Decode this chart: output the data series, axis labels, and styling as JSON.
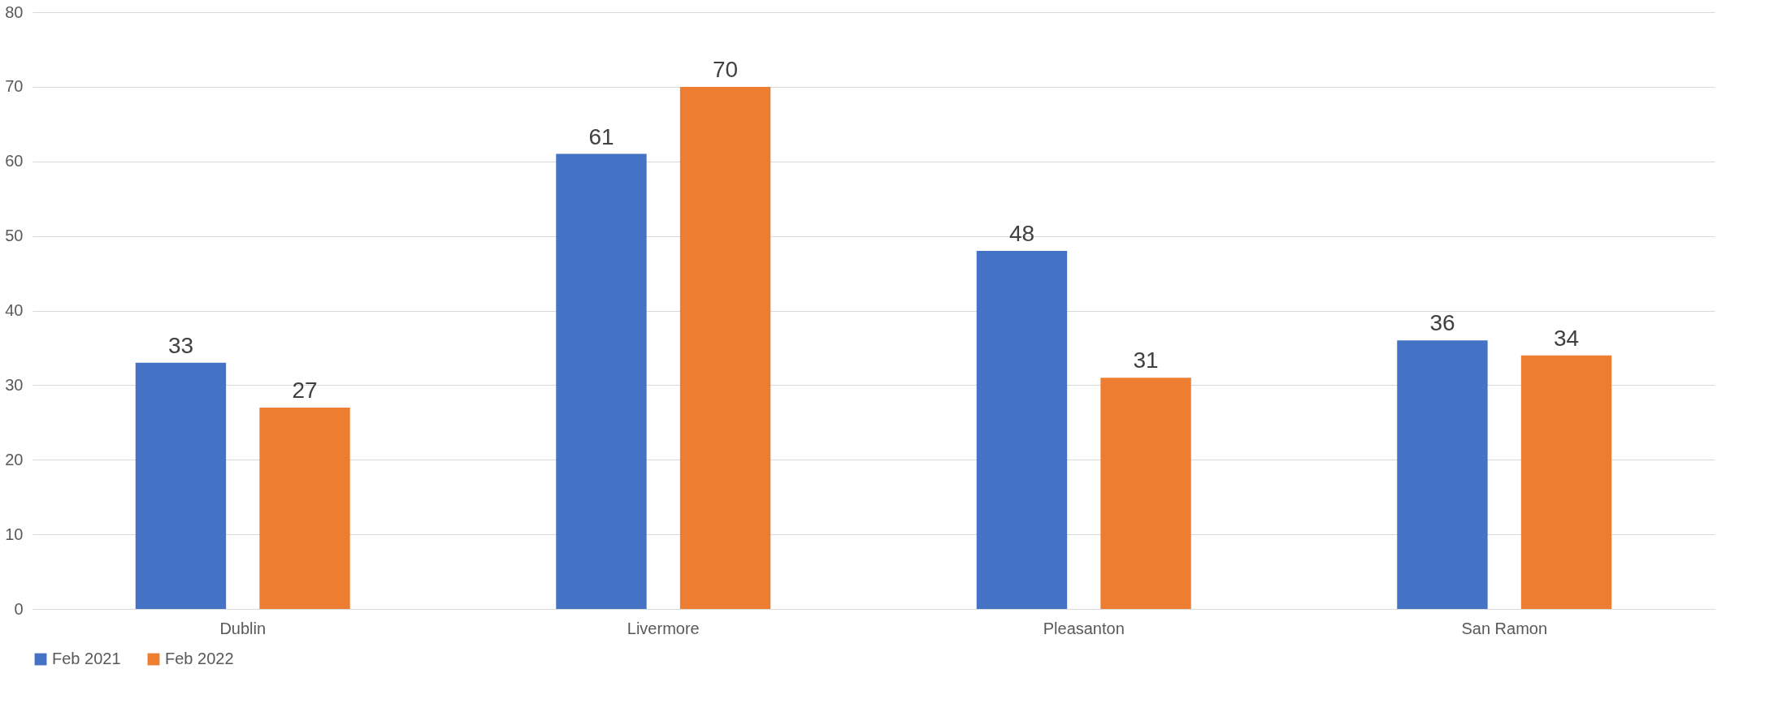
{
  "chart_data": {
    "type": "bar",
    "categories": [
      "Dublin",
      "Livermore",
      "Pleasanton",
      "San Ramon"
    ],
    "series": [
      {
        "name": "Feb 2021",
        "color": "#4472c4",
        "values": [
          33,
          61,
          48,
          36
        ]
      },
      {
        "name": "Feb 2022",
        "color": "#ed7d31",
        "values": [
          27,
          70,
          31,
          34
        ]
      }
    ],
    "ylim": [
      0,
      80
    ],
    "yticks": [
      0,
      10,
      20,
      30,
      40,
      50,
      60,
      70,
      80
    ],
    "grid": "y",
    "legend": "bottom",
    "data_labels": true
  }
}
